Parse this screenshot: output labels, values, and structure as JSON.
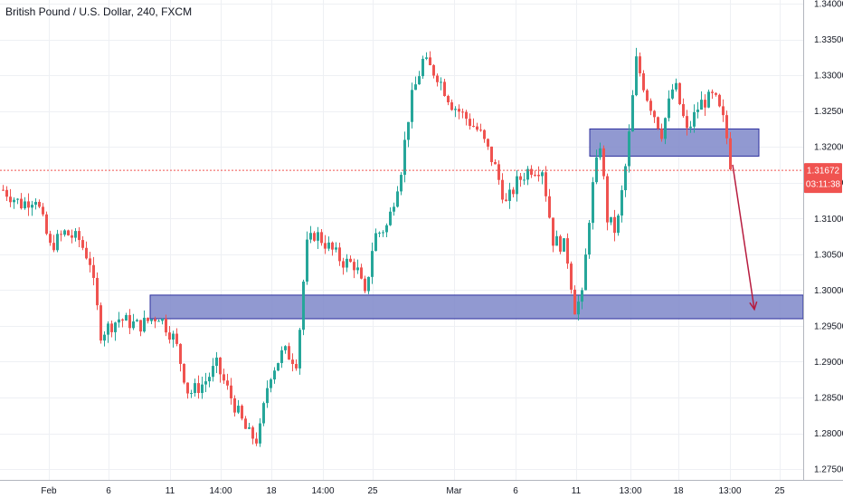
{
  "header": {
    "title": "British Pound / U.S. Dollar, 240, FXCM"
  },
  "price_badge": {
    "price": "1.31672",
    "countdown": "03:11:38",
    "color": "#f05350"
  },
  "colors": {
    "up": "#26a69a",
    "down": "#ef5350",
    "zone_fill": "#7e87c9",
    "zone_stroke": "#2c2f9e",
    "arrow": "#b71c3f"
  },
  "chart_data": {
    "type": "candlestick",
    "ylim": [
      1.2735,
      1.3405
    ],
    "y_ticks": [
      1.34,
      1.335,
      1.33,
      1.325,
      1.32,
      1.315,
      1.31,
      1.305,
      1.3,
      1.295,
      1.29,
      1.285,
      1.28,
      1.275
    ],
    "y_tick_labels": [
      "1.34000",
      "1.33500",
      "1.33000",
      "1.32500",
      "1.32000",
      "1.31500",
      "1.31000",
      "1.30500",
      "1.30000",
      "1.29500",
      "1.29000",
      "1.28500",
      "1.28000",
      "1.27500"
    ],
    "x_tick_labels": [
      "Feb",
      "6",
      "11",
      "14:00",
      "18",
      "14:00",
      "25",
      "Mar",
      "6",
      "11",
      "13:00",
      "18",
      "13:00",
      "25"
    ],
    "current_price": 1.31672,
    "series": [
      {
        "name": "GBPUSD",
        "anchors": [
          {
            "t": 0,
            "p": 1.314
          },
          {
            "t": 20,
            "p": 1.312
          },
          {
            "t": 36,
            "p": 1.313
          },
          {
            "t": 52,
            "p": 1.306
          },
          {
            "t": 68,
            "p": 1.308
          },
          {
            "t": 84,
            "p": 1.307
          },
          {
            "t": 96,
            "p": 1.304
          },
          {
            "t": 108,
            "p": 1.294
          },
          {
            "t": 128,
            "p": 1.296
          },
          {
            "t": 150,
            "p": 1.295
          },
          {
            "t": 172,
            "p": 1.2965
          },
          {
            "t": 190,
            "p": 1.293
          },
          {
            "t": 205,
            "p": 1.2855
          },
          {
            "t": 222,
            "p": 1.287
          },
          {
            "t": 236,
            "p": 1.2895
          },
          {
            "t": 252,
            "p": 1.285
          },
          {
            "t": 270,
            "p": 1.28
          },
          {
            "t": 282,
            "p": 1.279
          },
          {
            "t": 294,
            "p": 1.288
          },
          {
            "t": 310,
            "p": 1.2915
          },
          {
            "t": 325,
            "p": 1.29
          },
          {
            "t": 335,
            "p": 1.306
          },
          {
            "t": 345,
            "p": 1.308
          },
          {
            "t": 360,
            "p": 1.306
          },
          {
            "t": 375,
            "p": 1.304
          },
          {
            "t": 390,
            "p": 1.3035
          },
          {
            "t": 400,
            "p": 1.299
          },
          {
            "t": 410,
            "p": 1.3075
          },
          {
            "t": 425,
            "p": 1.309
          },
          {
            "t": 440,
            "p": 1.317
          },
          {
            "t": 450,
            "p": 1.326
          },
          {
            "t": 464,
            "p": 1.332
          },
          {
            "t": 480,
            "p": 1.33
          },
          {
            "t": 496,
            "p": 1.326
          },
          {
            "t": 512,
            "p": 1.324
          },
          {
            "t": 527,
            "p": 1.322
          },
          {
            "t": 543,
            "p": 1.3175
          },
          {
            "t": 556,
            "p": 1.312
          },
          {
            "t": 568,
            "p": 1.315
          },
          {
            "t": 582,
            "p": 1.317
          },
          {
            "t": 596,
            "p": 1.317
          },
          {
            "t": 608,
            "p": 1.307
          },
          {
            "t": 622,
            "p": 1.306
          },
          {
            "t": 632,
            "p": 1.2975
          },
          {
            "t": 640,
            "p": 1.299
          },
          {
            "t": 650,
            "p": 1.313
          },
          {
            "t": 660,
            "p": 1.3205
          },
          {
            "t": 668,
            "p": 1.31
          },
          {
            "t": 678,
            "p": 1.308
          },
          {
            "t": 690,
            "p": 1.319
          },
          {
            "t": 700,
            "p": 1.332
          },
          {
            "t": 712,
            "p": 1.327
          },
          {
            "t": 728,
            "p": 1.322
          },
          {
            "t": 742,
            "p": 1.329
          },
          {
            "t": 756,
            "p": 1.322
          },
          {
            "t": 770,
            "p": 1.326
          },
          {
            "t": 786,
            "p": 1.327
          },
          {
            "t": 798,
            "p": 1.323
          },
          {
            "t": 806,
            "p": 1.316
          }
        ]
      }
    ],
    "annotations": [
      {
        "type": "zone",
        "from": 1.296,
        "to": 1.2993
      },
      {
        "type": "zone",
        "from": 1.3187,
        "to": 1.3225
      },
      {
        "type": "arrow",
        "from_price": 1.3175,
        "to_price": 1.2973
      }
    ]
  }
}
